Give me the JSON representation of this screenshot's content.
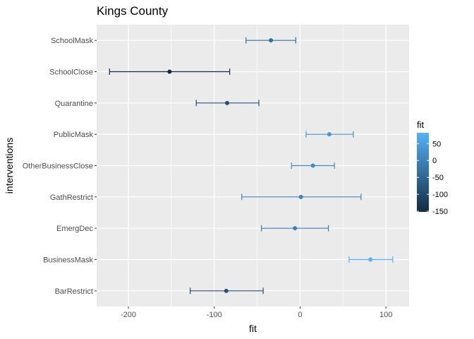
{
  "chart_data": {
    "type": "scatter",
    "title": "Kings County",
    "xlabel": "fit",
    "ylabel": "interventions",
    "xlim": [
      -237,
      127
    ],
    "xticks": [
      -200,
      -100,
      0,
      100
    ],
    "xtick_labels": [
      "-200",
      "-100",
      "0",
      "100"
    ],
    "grid": true,
    "legend": {
      "title": "fit",
      "placement": "right",
      "range": [
        -152,
        82
      ],
      "ticks": [
        50,
        0,
        -50,
        -100,
        -150
      ],
      "tick_labels": [
        "50",
        "0",
        "-50",
        "-100",
        "-150"
      ],
      "color_low": "#132b43",
      "color_high": "#56b1f7"
    },
    "categories": [
      "SchoolMask",
      "SchoolClose",
      "Quarantine",
      "PublicMask",
      "OtherBusinessClose",
      "GathRestrict",
      "EmergDec",
      "BusinessMask",
      "BarRestrict"
    ],
    "fit": [
      -34,
      -152,
      -85,
      34,
      15,
      1,
      -6,
      82,
      -86
    ],
    "lower": [
      -63,
      -222,
      -121,
      7,
      -10,
      -68,
      -45,
      57,
      -128
    ],
    "upper": [
      -5,
      -82,
      -48,
      62,
      40,
      71,
      33,
      108,
      -43
    ]
  }
}
